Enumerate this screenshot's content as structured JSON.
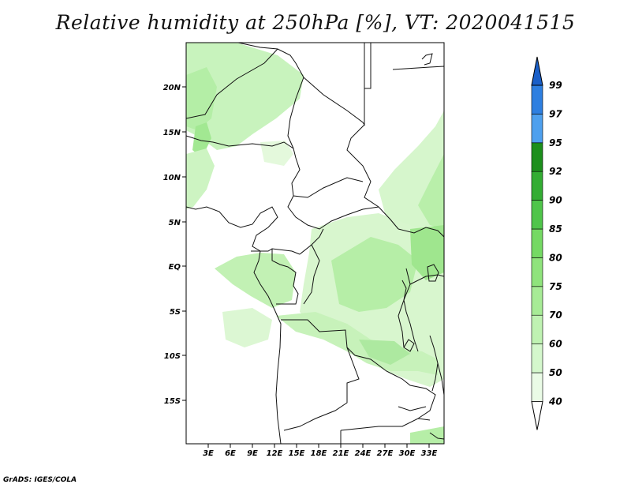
{
  "title": "Relative humidity at 250hPa [%], VT: 2020041515",
  "credit": "GrADS: IGES/COLA",
  "map": {
    "lon_labels": [
      "3E",
      "6E",
      "9E",
      "12E",
      "15E",
      "18E",
      "21E",
      "24E",
      "27E",
      "30E",
      "33E"
    ],
    "lat_labels": [
      "20N",
      "15N",
      "10N",
      "5N",
      "EQ",
      "5S",
      "10S",
      "15S"
    ]
  },
  "colorbar": {
    "levels": [
      "40",
      "50",
      "60",
      "70",
      "75",
      "80",
      "85",
      "90",
      "92",
      "95",
      "97",
      "99"
    ],
    "colors": [
      "#ffffff",
      "#eafbe6",
      "#d4f7cc",
      "#bff2b2",
      "#a7eb96",
      "#8fe37c",
      "#75d964",
      "#4fc54a",
      "#33ad33",
      "#1c8f1c",
      "#4ea0ee",
      "#2e7fe0",
      "#1a5fc8"
    ]
  }
}
